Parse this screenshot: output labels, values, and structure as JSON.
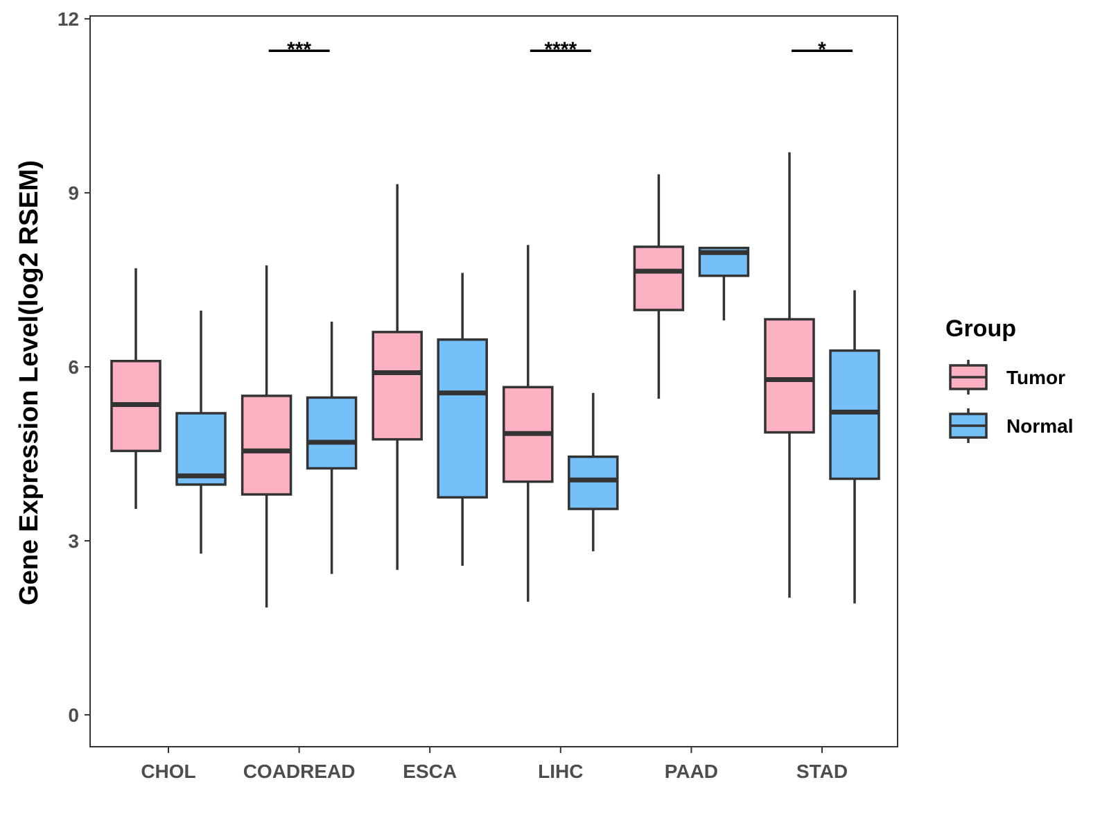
{
  "chart_data": {
    "type": "boxplot",
    "title": "",
    "xlabel": "",
    "ylabel": "Gene Expression Level(log2 RSEM)",
    "ylim": [
      -0.55,
      12.05
    ],
    "yticks": [
      0,
      3,
      6,
      9,
      12
    ],
    "ytick_labels": [
      "0",
      "3",
      "6",
      "9",
      "12"
    ],
    "grid": false,
    "categories": [
      "CHOL",
      "COADREAD",
      "ESCA",
      "LIHC",
      "PAAD",
      "STAD"
    ],
    "series": [
      {
        "name": "Tumor",
        "color": "#FBB1C1",
        "boxes": [
          {
            "whisker_low": 3.55,
            "q1": 4.55,
            "median": 5.35,
            "q3": 6.1,
            "whisker_high": 7.7
          },
          {
            "whisker_low": 1.85,
            "q1": 3.8,
            "median": 4.55,
            "q3": 5.5,
            "whisker_high": 7.75
          },
          {
            "whisker_low": 2.5,
            "q1": 4.75,
            "median": 5.9,
            "q3": 6.6,
            "whisker_high": 9.15
          },
          {
            "whisker_low": 1.95,
            "q1": 4.02,
            "median": 4.85,
            "q3": 5.65,
            "whisker_high": 8.1
          },
          {
            "whisker_low": 5.45,
            "q1": 6.98,
            "median": 7.65,
            "q3": 8.07,
            "whisker_high": 9.32
          },
          {
            "whisker_low": 2.02,
            "q1": 4.87,
            "median": 5.78,
            "q3": 6.82,
            "whisker_high": 9.7
          }
        ]
      },
      {
        "name": "Normal",
        "color": "#76C0FA",
        "boxes": [
          {
            "whisker_low": 2.78,
            "q1": 3.97,
            "median": 4.12,
            "q3": 5.2,
            "whisker_high": 6.97
          },
          {
            "whisker_low": 2.43,
            "q1": 4.25,
            "median": 4.7,
            "q3": 5.47,
            "whisker_high": 6.78
          },
          {
            "whisker_low": 2.57,
            "q1": 3.75,
            "median": 5.55,
            "q3": 6.47,
            "whisker_high": 7.62
          },
          {
            "whisker_low": 2.82,
            "q1": 3.55,
            "median": 4.05,
            "q3": 4.45,
            "whisker_high": 5.55
          },
          {
            "whisker_low": 6.8,
            "q1": 7.57,
            "median": 7.97,
            "q3": 8.05,
            "whisker_high": 8.05
          },
          {
            "whisker_low": 1.92,
            "q1": 4.07,
            "median": 5.22,
            "q3": 6.28,
            "whisker_high": 7.32
          }
        ]
      }
    ],
    "significance": [
      {
        "category": "COADREAD",
        "label": "***",
        "y": 11.45
      },
      {
        "category": "LIHC",
        "label": "****",
        "y": 11.45
      },
      {
        "category": "STAD",
        "label": "*",
        "y": 11.45
      }
    ],
    "legend": {
      "title": "Group",
      "placement": "right",
      "items": [
        "Tumor",
        "Normal"
      ]
    }
  }
}
